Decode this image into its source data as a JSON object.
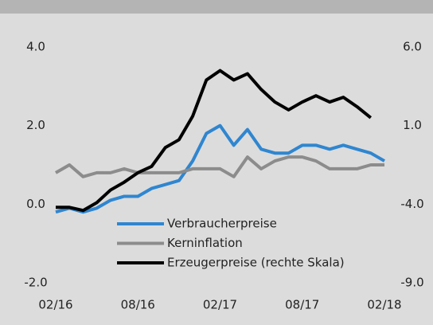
{
  "chart_data": {
    "type": "line",
    "categories": [
      "02/16",
      null,
      null,
      null,
      null,
      null,
      "08/16",
      null,
      null,
      null,
      null,
      null,
      "02/17",
      null,
      null,
      null,
      null,
      null,
      "08/17",
      null,
      null,
      null,
      null,
      null,
      "02/18"
    ],
    "series": [
      {
        "name": "Verbraucherpreise",
        "color": "#2f86d0",
        "values": [
          -0.2,
          -0.1,
          -0.2,
          -0.1,
          0.1,
          0.2,
          0.2,
          0.4,
          0.5,
          0.6,
          1.1,
          1.8,
          2.0,
          1.5,
          1.9,
          1.4,
          1.3,
          1.3,
          1.5,
          1.5,
          1.4,
          1.5,
          1.4,
          1.3,
          1.1
        ]
      },
      {
        "name": "Kerninflation",
        "color": "#8c8c8c",
        "values": [
          0.8,
          1.0,
          0.7,
          0.8,
          0.8,
          0.9,
          0.8,
          0.8,
          0.8,
          0.8,
          0.9,
          0.9,
          0.9,
          0.7,
          1.2,
          0.9,
          1.1,
          1.2,
          1.2,
          1.1,
          0.9,
          0.9,
          0.9,
          1.0,
          1.0
        ]
      },
      {
        "name": "Erzeugerpreise (rechte Skala)",
        "color": "#000000",
        "axis": "y2",
        "values": [
          -4.2,
          -4.2,
          -4.4,
          -3.9,
          -3.1,
          -2.6,
          -2.0,
          -1.6,
          -0.4,
          0.1,
          1.6,
          3.9,
          4.5,
          3.9,
          4.3,
          3.3,
          2.5,
          2.0,
          2.5,
          2.9,
          2.5,
          2.8,
          2.2,
          1.5,
          null
        ]
      }
    ],
    "ylim": [
      -2,
      4
    ],
    "yticks": [
      {
        "value": -2,
        "label": "-2.0"
      },
      {
        "value": 0,
        "label": "0.0"
      },
      {
        "value": 2,
        "label": "2.0"
      },
      {
        "value": 4,
        "label": "4.0"
      }
    ],
    "y2lim": [
      -9,
      6
    ],
    "y2ticks": [
      {
        "value": -9,
        "label": "-9.0"
      },
      {
        "value": -4,
        "label": "-4.0"
      },
      {
        "value": 1,
        "label": "1.0"
      },
      {
        "value": 6,
        "label": "6.0"
      }
    ]
  }
}
